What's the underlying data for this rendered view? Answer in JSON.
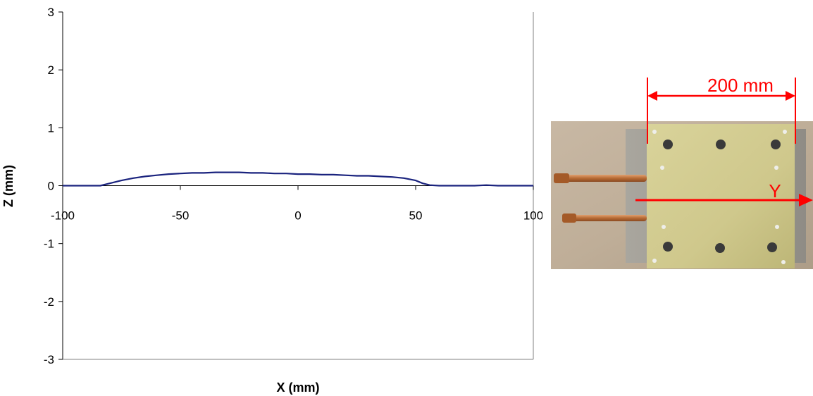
{
  "chart_data": {
    "type": "line",
    "xlabel": "X (mm)",
    "ylabel": "Z (mm)",
    "xlim": [
      -100,
      100
    ],
    "ylim": [
      -3,
      3
    ],
    "x_ticks": [
      -100,
      -50,
      0,
      50,
      100
    ],
    "y_ticks": [
      -3,
      -2,
      -1,
      0,
      1,
      2,
      3
    ],
    "grid": false,
    "series": [
      {
        "color": "#1a237e",
        "x": [
          -100,
          -90,
          -84,
          -80,
          -75,
          -70,
          -65,
          -60,
          -55,
          -50,
          -45,
          -40,
          -35,
          -30,
          -25,
          -20,
          -15,
          -10,
          -5,
          0,
          5,
          10,
          15,
          20,
          25,
          30,
          35,
          40,
          45,
          50,
          53,
          56,
          60,
          65,
          70,
          75,
          80,
          85,
          90,
          95,
          100
        ],
        "y": [
          0.0,
          0.0,
          0.0,
          0.04,
          0.09,
          0.13,
          0.16,
          0.18,
          0.2,
          0.21,
          0.22,
          0.22,
          0.23,
          0.23,
          0.23,
          0.22,
          0.22,
          0.21,
          0.21,
          0.2,
          0.2,
          0.19,
          0.19,
          0.18,
          0.17,
          0.17,
          0.16,
          0.15,
          0.13,
          0.09,
          0.04,
          0.01,
          0.0,
          0.0,
          0.0,
          0.0,
          0.01,
          0.0,
          0.0,
          0.0,
          0.0
        ]
      }
    ]
  },
  "photo": {
    "dimension_label": "200 mm",
    "axis_label": "Y",
    "annotation_color": "#ff0000"
  }
}
